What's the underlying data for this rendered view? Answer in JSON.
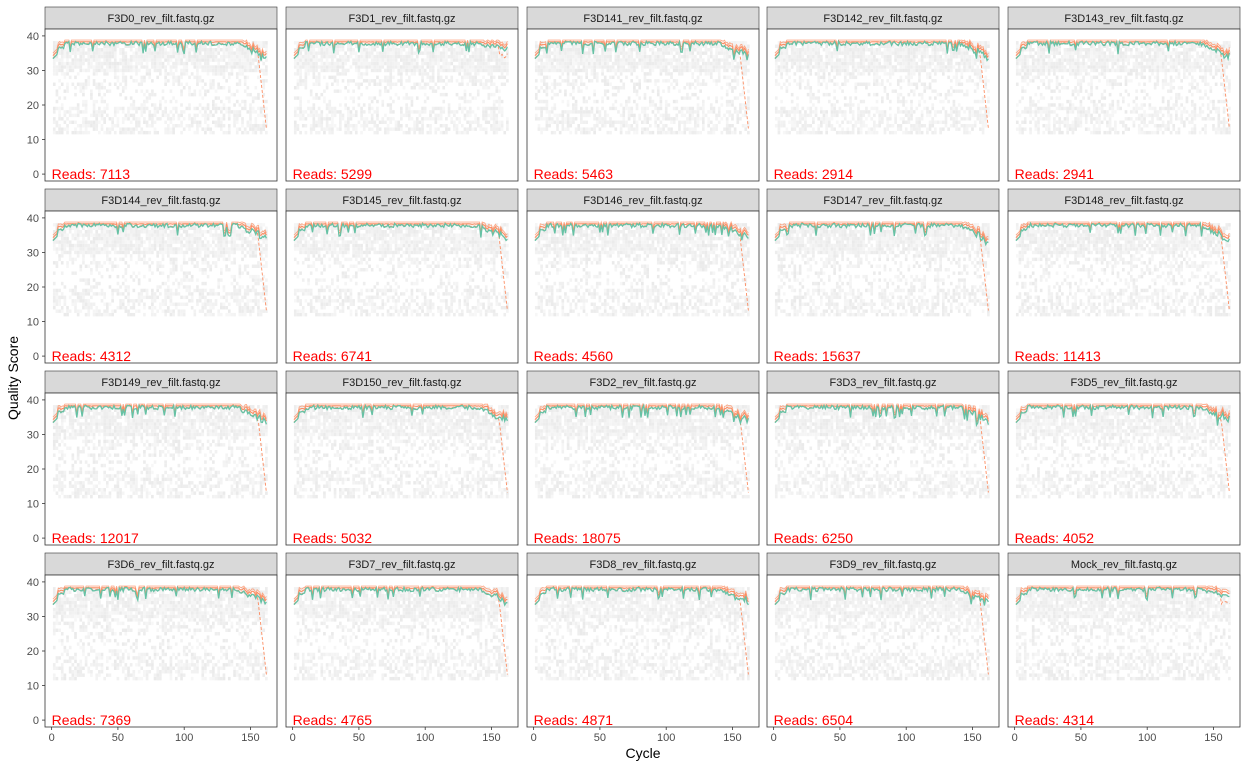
{
  "figure": {
    "x_axis_title": "Cycle",
    "y_axis_title": "Quality Score",
    "reads_prefix": "Reads: ",
    "colors": {
      "strip_fill": "#d9d9d9",
      "panel_border": "#333333",
      "heat": "#f0f0f0",
      "mean_line": "#66c2a5",
      "quantile_lines": "#fc8d62",
      "reads_text": "#ff0000"
    }
  },
  "chart_data": {
    "type": "heatmap",
    "layout": {
      "rows": 4,
      "cols": 5
    },
    "xlim": [
      -5,
      170
    ],
    "ylim": [
      -2,
      42
    ],
    "x_ticks": [
      0,
      50,
      100,
      150
    ],
    "y_ticks": [
      0,
      10,
      20,
      30,
      40
    ],
    "grid": false,
    "cycles": 162,
    "panels": [
      {
        "label": "F3D0_rev_filt.fastq.gz",
        "reads": 7113,
        "end_drop": "strong"
      },
      {
        "label": "F3D1_rev_filt.fastq.gz",
        "reads": 5299,
        "end_drop": "mild"
      },
      {
        "label": "F3D141_rev_filt.fastq.gz",
        "reads": 5463,
        "end_drop": "strong"
      },
      {
        "label": "F3D142_rev_filt.fastq.gz",
        "reads": 2914,
        "end_drop": "strong"
      },
      {
        "label": "F3D143_rev_filt.fastq.gz",
        "reads": 2941,
        "end_drop": "strong"
      },
      {
        "label": "F3D144_rev_filt.fastq.gz",
        "reads": 4312,
        "end_drop": "strong"
      },
      {
        "label": "F3D145_rev_filt.fastq.gz",
        "reads": 6741,
        "end_drop": "strong"
      },
      {
        "label": "F3D146_rev_filt.fastq.gz",
        "reads": 4560,
        "end_drop": "strong"
      },
      {
        "label": "F3D147_rev_filt.fastq.gz",
        "reads": 15637,
        "end_drop": "strong"
      },
      {
        "label": "F3D148_rev_filt.fastq.gz",
        "reads": 11413,
        "end_drop": "strong"
      },
      {
        "label": "F3D149_rev_filt.fastq.gz",
        "reads": 12017,
        "end_drop": "strong"
      },
      {
        "label": "F3D150_rev_filt.fastq.gz",
        "reads": 5032,
        "end_drop": "strong"
      },
      {
        "label": "F3D2_rev_filt.fastq.gz",
        "reads": 18075,
        "end_drop": "strong"
      },
      {
        "label": "F3D3_rev_filt.fastq.gz",
        "reads": 6250,
        "end_drop": "strong"
      },
      {
        "label": "F3D5_rev_filt.fastq.gz",
        "reads": 4052,
        "end_drop": "strong"
      },
      {
        "label": "F3D6_rev_filt.fastq.gz",
        "reads": 7369,
        "end_drop": "strong"
      },
      {
        "label": "F3D7_rev_filt.fastq.gz",
        "reads": 4765,
        "end_drop": "strong"
      },
      {
        "label": "F3D8_rev_filt.fastq.gz",
        "reads": 4871,
        "end_drop": "strong"
      },
      {
        "label": "F3D9_rev_filt.fastq.gz",
        "reads": 6504,
        "end_drop": "strong"
      },
      {
        "label": "Mock_rev_filt.fastq.gz",
        "reads": 4314,
        "end_drop": "mild"
      }
    ]
  }
}
